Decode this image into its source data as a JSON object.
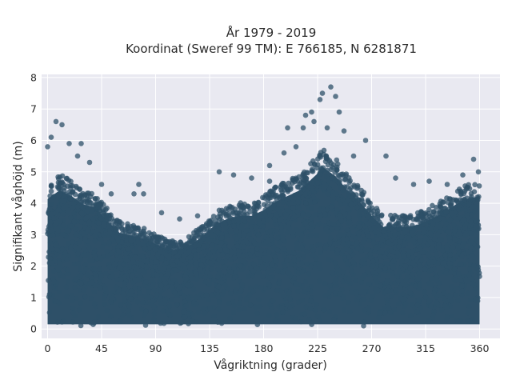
{
  "chart_data": {
    "type": "scatter",
    "title_line1": "År 1979 - 2019",
    "title_line2": "Koordinat (Sweref 99 TM): E 766185, N 6281871",
    "xlabel": "Vågriktning (grader)",
    "ylabel": "Signifikant våghöjd (m)",
    "xlim": [
      -5,
      377
    ],
    "ylim": [
      -0.3,
      8.1
    ],
    "xticks": [
      0,
      45,
      90,
      135,
      180,
      225,
      270,
      315,
      360
    ],
    "xtick_labels": [
      "0",
      "45",
      "90",
      "135",
      "180",
      "225",
      "270",
      "315",
      "360"
    ],
    "yticks": [
      0,
      1,
      2,
      3,
      4,
      5,
      6,
      7,
      8
    ],
    "ytick_labels": [
      "0",
      "1",
      "2",
      "3",
      "4",
      "5",
      "6",
      "7",
      "8"
    ],
    "grid": true,
    "legend": "none",
    "marker_color": "#2e5068",
    "plot_background": "#e9e9f1",
    "grid_color": "#ffffff",
    "envelope": {
      "x": [
        0,
        10,
        20,
        30,
        40,
        50,
        60,
        70,
        80,
        90,
        100,
        110,
        120,
        130,
        140,
        150,
        160,
        170,
        180,
        190,
        200,
        210,
        220,
        230,
        240,
        250,
        260,
        270,
        280,
        290,
        300,
        310,
        320,
        330,
        340,
        350,
        360
      ],
      "ymax": [
        4.6,
        4.9,
        4.7,
        4.4,
        4.3,
        3.8,
        3.4,
        3.3,
        3.2,
        3.0,
        2.8,
        2.8,
        3.0,
        3.3,
        3.7,
        3.9,
        4.0,
        4.0,
        4.2,
        4.5,
        4.7,
        4.9,
        5.3,
        5.7,
        5.4,
        4.9,
        4.5,
        4.0,
        3.6,
        3.6,
        3.6,
        3.7,
        3.9,
        4.1,
        4.4,
        4.6,
        4.7
      ]
    },
    "outliers": [
      {
        "x": 7,
        "y": 6.6
      },
      {
        "x": 12,
        "y": 6.5
      },
      {
        "x": 3,
        "y": 6.1
      },
      {
        "x": 0,
        "y": 5.8
      },
      {
        "x": 18,
        "y": 5.9
      },
      {
        "x": 28,
        "y": 5.9
      },
      {
        "x": 35,
        "y": 5.3
      },
      {
        "x": 25,
        "y": 5.5
      },
      {
        "x": 45,
        "y": 4.6
      },
      {
        "x": 53,
        "y": 4.3
      },
      {
        "x": 76,
        "y": 4.6
      },
      {
        "x": 72,
        "y": 4.3
      },
      {
        "x": 80,
        "y": 4.3
      },
      {
        "x": 95,
        "y": 3.7
      },
      {
        "x": 110,
        "y": 3.5
      },
      {
        "x": 125,
        "y": 3.6
      },
      {
        "x": 143,
        "y": 5.0
      },
      {
        "x": 155,
        "y": 4.9
      },
      {
        "x": 170,
        "y": 4.8
      },
      {
        "x": 185,
        "y": 5.2
      },
      {
        "x": 197,
        "y": 5.6
      },
      {
        "x": 200,
        "y": 6.4
      },
      {
        "x": 207,
        "y": 5.8
      },
      {
        "x": 213,
        "y": 6.4
      },
      {
        "x": 215,
        "y": 6.8
      },
      {
        "x": 220,
        "y": 6.9
      },
      {
        "x": 222,
        "y": 6.6
      },
      {
        "x": 227,
        "y": 7.3
      },
      {
        "x": 229,
        "y": 7.5
      },
      {
        "x": 236,
        "y": 7.7
      },
      {
        "x": 240,
        "y": 7.4
      },
      {
        "x": 243,
        "y": 6.9
      },
      {
        "x": 233,
        "y": 6.4
      },
      {
        "x": 247,
        "y": 6.3
      },
      {
        "x": 255,
        "y": 5.5
      },
      {
        "x": 265,
        "y": 6.0
      },
      {
        "x": 282,
        "y": 5.5
      },
      {
        "x": 290,
        "y": 4.8
      },
      {
        "x": 305,
        "y": 4.6
      },
      {
        "x": 318,
        "y": 4.7
      },
      {
        "x": 333,
        "y": 4.6
      },
      {
        "x": 346,
        "y": 4.9
      },
      {
        "x": 355,
        "y": 5.4
      },
      {
        "x": 359,
        "y": 5.0
      },
      {
        "x": 185,
        "y": 4.7
      }
    ]
  }
}
